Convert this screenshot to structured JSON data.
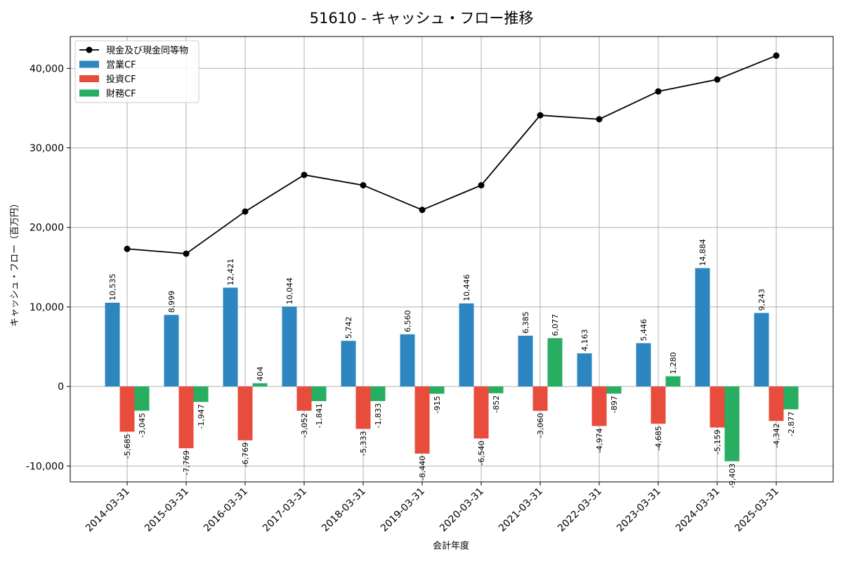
{
  "colors": {
    "operating": "#2e86c1",
    "investing": "#e74c3c",
    "financing": "#27ae60",
    "cash": "#000000",
    "grid": "#b0b0b0"
  },
  "chart_data": {
    "type": "bar",
    "title": "51610 - キャッシュ・フロー推移",
    "xlabel": "会計年度",
    "ylabel": "キャッシュ・フロー（百万円）",
    "ylim": [
      -12000,
      44000
    ],
    "yticks": [
      -10000,
      0,
      10000,
      20000,
      30000,
      40000
    ],
    "ytick_labels": [
      "-10,000",
      "0",
      "10,000",
      "20,000",
      "30,000",
      "40,000"
    ],
    "grid": true,
    "legend_position": "top-left",
    "categories": [
      "2014-03-31",
      "2015-03-31",
      "2016-03-31",
      "2017-03-31",
      "2018-03-31",
      "2019-03-31",
      "2020-03-31",
      "2021-03-31",
      "2022-03-31",
      "2023-03-31",
      "2024-03-31",
      "2025-03-31"
    ],
    "series": [
      {
        "name": "営業CF",
        "type": "bar",
        "color_key": "operating",
        "values": [
          10535,
          8999,
          12421,
          10044,
          5742,
          6560,
          10446,
          6385,
          4163,
          5446,
          14884,
          9243
        ],
        "labels": [
          "10,535",
          "8,999",
          "12,421",
          "10,044",
          "5,742",
          "6,560",
          "10,446",
          "6,385",
          "4,163",
          "5,446",
          "14,884",
          "9,243"
        ]
      },
      {
        "name": "投資CF",
        "type": "bar",
        "color_key": "investing",
        "values": [
          -5685,
          -7769,
          -6769,
          -3052,
          -5333,
          -8440,
          -6540,
          -3060,
          -4974,
          -4685,
          -5159,
          -4342
        ],
        "labels": [
          "-5,685",
          "-7,769",
          "-6,769",
          "-3,052",
          "-5,333",
          "-8,440",
          "-6,540",
          "-3,060",
          "-4,974",
          "-4,685",
          "-5,159",
          "-4,342"
        ]
      },
      {
        "name": "財務CF",
        "type": "bar",
        "color_key": "financing",
        "values": [
          -3045,
          -1947,
          404,
          -1841,
          -1833,
          -915,
          -852,
          6077,
          -897,
          1280,
          -9403,
          -2877
        ],
        "labels": [
          "-3,045",
          "-1,947",
          "404",
          "-1,841",
          "-1,833",
          "-915",
          "-852",
          "6,077",
          "-897",
          "1,280",
          "-9,403",
          "-2,877"
        ]
      },
      {
        "name": "現金及び現金同等物",
        "type": "line",
        "color_key": "cash",
        "values": [
          17300,
          16700,
          22000,
          26600,
          25300,
          22200,
          25300,
          34100,
          33600,
          37100,
          38600,
          41600
        ]
      }
    ]
  }
}
